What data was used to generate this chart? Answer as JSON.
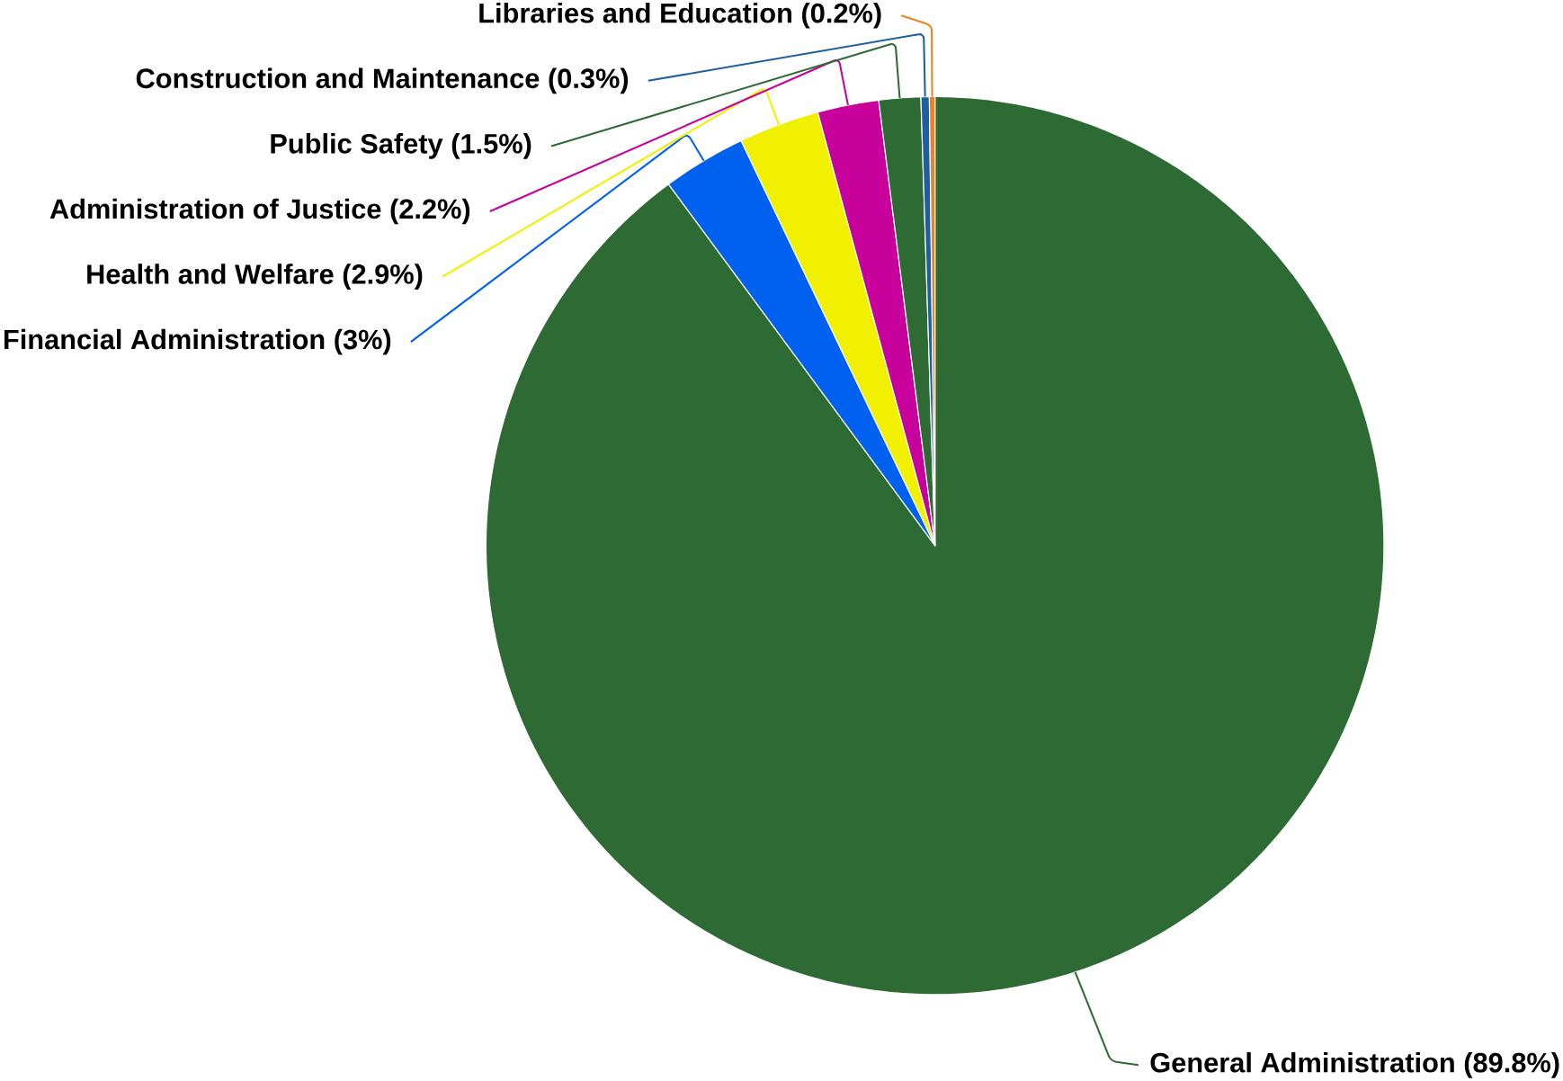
{
  "chart_data": {
    "type": "pie",
    "categories": [
      "General Administration",
      "Financial Administration",
      "Health and Welfare",
      "Administration of Justice",
      "Public Safety",
      "Construction and Maintenance",
      "Libraries and Education"
    ],
    "values": [
      89.8,
      3,
      2.9,
      2.2,
      1.5,
      0.3,
      0.2
    ],
    "value_labels": [
      "(89.8%)",
      "(3%)",
      "(2.9%)",
      "(2.2%)",
      "(1.5%)",
      "(0.3%)",
      "(0.2%)"
    ],
    "colors": [
      "#2e6b34",
      "#0060f0",
      "#f0f000",
      "#c8009c",
      "#2e6b34",
      "#1f5f9f",
      "#f08020"
    ]
  }
}
